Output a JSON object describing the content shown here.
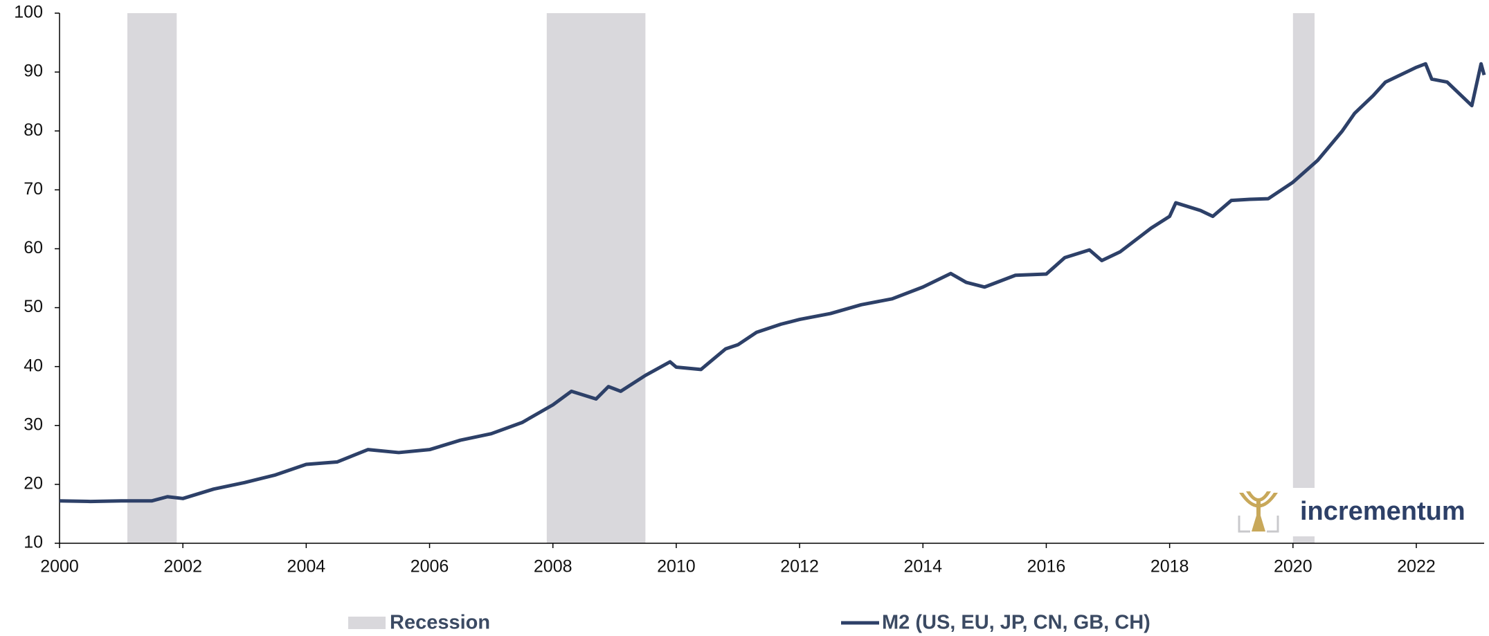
{
  "chart_data": {
    "type": "line",
    "x": [
      2000,
      2000.5,
      2001,
      2001.5,
      2001.75,
      2002,
      2002.5,
      2003,
      2003.5,
      2004,
      2004.5,
      2005,
      2005.5,
      2006,
      2006.5,
      2007,
      2007.5,
      2008,
      2008.3,
      2008.7,
      2008.9,
      2009.1,
      2009.5,
      2009.9,
      2010,
      2010.4,
      2010.8,
      2011,
      2011.3,
      2011.7,
      2012,
      2012.5,
      2013,
      2013.5,
      2014,
      2014.45,
      2014.7,
      2015,
      2015.5,
      2016,
      2016.3,
      2016.7,
      2016.9,
      2017.2,
      2017.7,
      2018,
      2018.1,
      2018.5,
      2018.7,
      2019,
      2019.3,
      2019.6,
      2020,
      2020.4,
      2020.8,
      2021,
      2021.3,
      2021.5,
      2022,
      2022.15,
      2022.25,
      2022.5,
      2022.9,
      2023.05,
      2023.1
    ],
    "series": [
      {
        "name": "M2 (US, EU, JP, CN, GB, CH)",
        "color": "#2d4068",
        "values": [
          17.2,
          17.1,
          17.2,
          17.2,
          17.9,
          17.6,
          19.2,
          20.3,
          21.6,
          23.4,
          23.8,
          25.9,
          25.4,
          25.9,
          27.5,
          28.6,
          30.5,
          33.5,
          35.8,
          34.5,
          36.6,
          35.8,
          38.5,
          40.8,
          39.9,
          39.5,
          43.0,
          43.7,
          45.8,
          47.2,
          48.0,
          49.0,
          50.5,
          51.5,
          53.5,
          55.8,
          54.3,
          53.5,
          55.5,
          55.7,
          58.5,
          59.8,
          58.0,
          59.5,
          63.5,
          65.5,
          67.8,
          66.5,
          65.5,
          68.2,
          68.4,
          68.5,
          71.3,
          75.0,
          80.0,
          83.0,
          86.0,
          88.3,
          90.8,
          91.4,
          88.8,
          88.3,
          84.3,
          91.4,
          89.5
        ]
      }
    ],
    "recessions": {
      "name": "Recession",
      "color": "#d9d8dc",
      "periods": [
        [
          2001.1,
          2001.9
        ],
        [
          2007.9,
          2009.5
        ],
        [
          2020.0,
          2020.35
        ]
      ]
    },
    "xlim": [
      2000,
      2023.1
    ],
    "xticks": [
      2000,
      2002,
      2004,
      2006,
      2008,
      2010,
      2012,
      2014,
      2016,
      2018,
      2020,
      2022
    ],
    "ylim": [
      10,
      100
    ],
    "yticks": [
      10,
      20,
      30,
      40,
      50,
      60,
      70,
      80,
      90,
      100
    ],
    "logo": "incrementum"
  }
}
